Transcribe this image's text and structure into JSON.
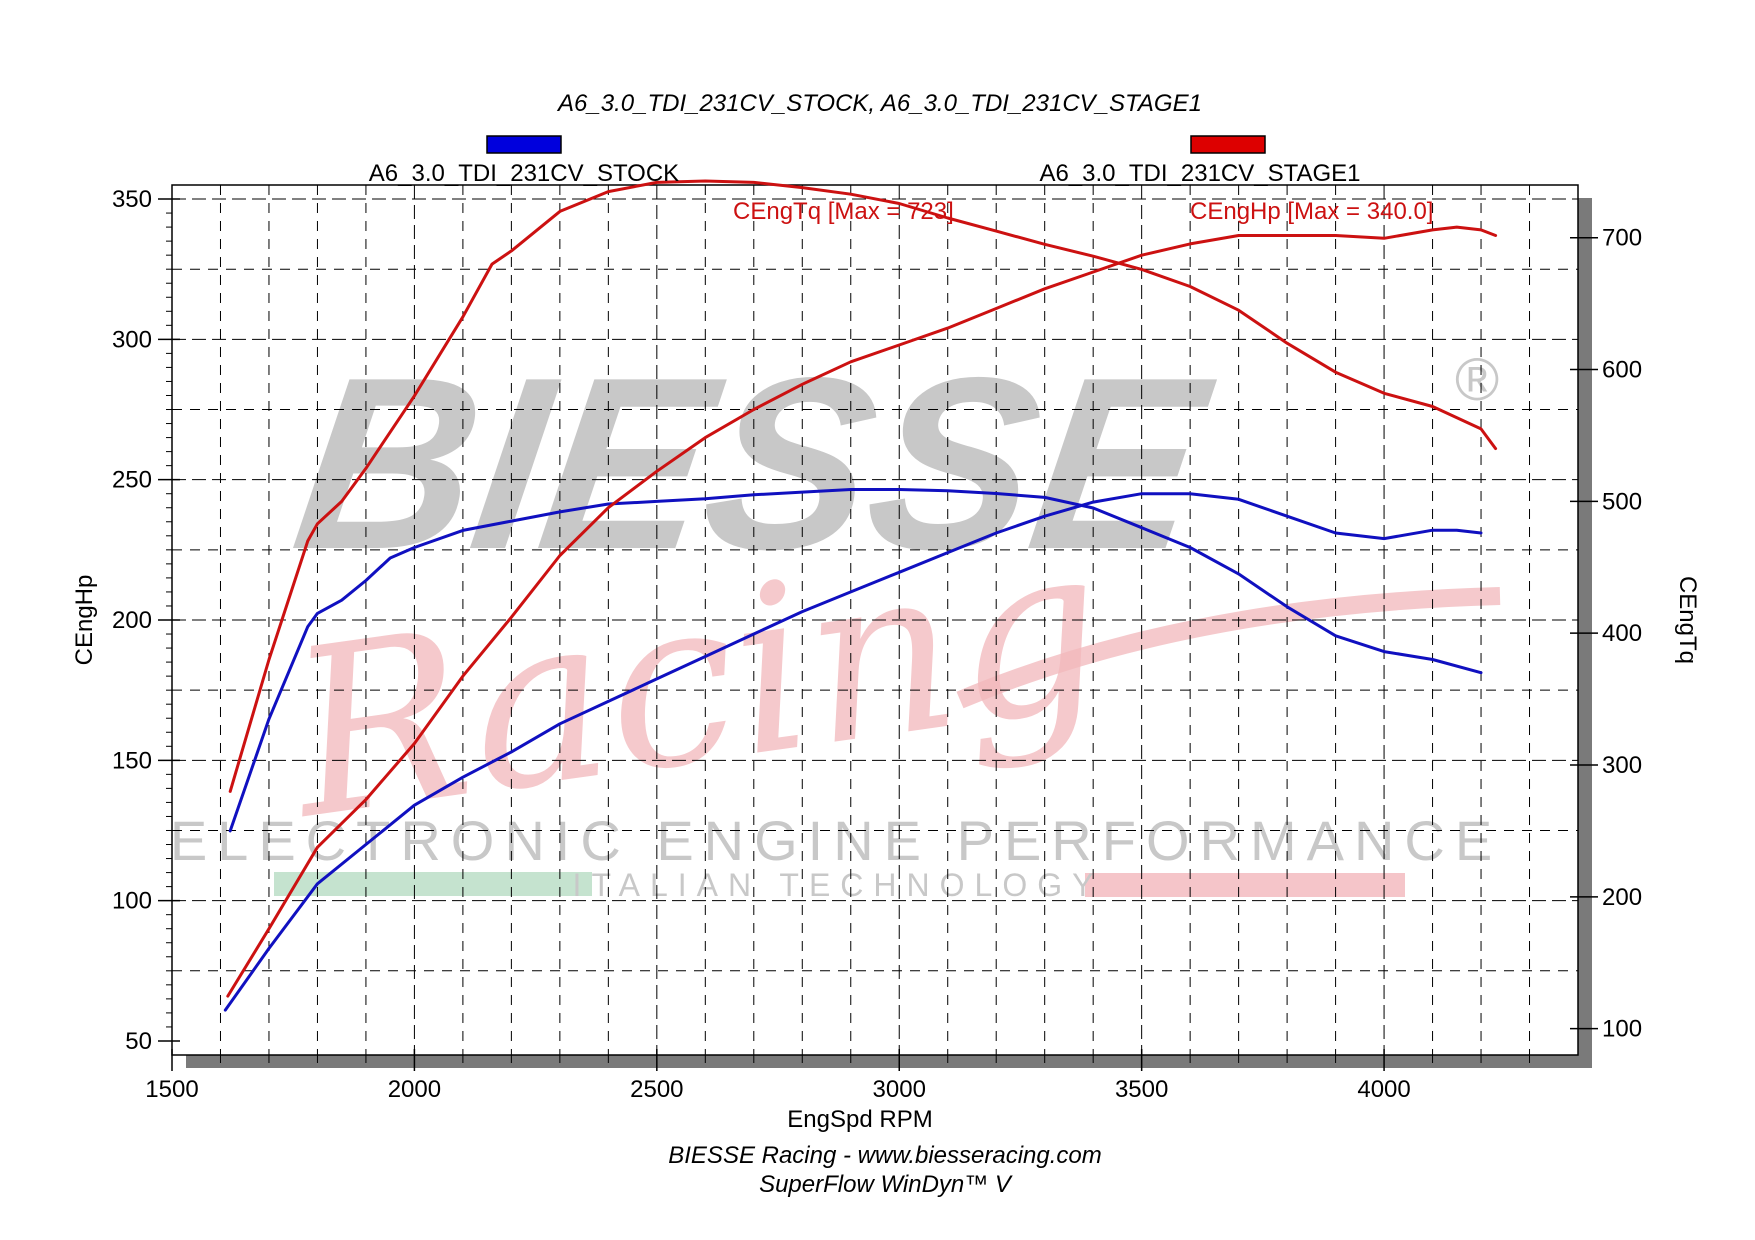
{
  "chart_data": {
    "type": "line",
    "title": "A6_3.0_TDI_231CV_STOCK, A6_3.0_TDI_231CV_STAGE1",
    "xlabel": "EngSpd RPM",
    "ylabel_left": "CEngHp",
    "ylabel_right": "CEngTq",
    "xlim": [
      1500,
      4400
    ],
    "ylim_left": [
      45,
      355
    ],
    "ylim_right": [
      80,
      740
    ],
    "x_ticks": [
      1500,
      2000,
      2500,
      3000,
      3500,
      4000
    ],
    "y_left_ticks": [
      50,
      100,
      150,
      200,
      250,
      300,
      350
    ],
    "y_right_ticks": [
      100,
      200,
      300,
      400,
      500,
      600,
      700
    ],
    "grid": true,
    "legend": [
      {
        "name": "A6_3.0_TDI_231CV_STOCK",
        "color": "#0000dd"
      },
      {
        "name": "A6_3.0_TDI_231CV_STAGE1",
        "color": "#dd0000"
      }
    ],
    "annotations": {
      "torque_max": "CEngTq [Max = 723]",
      "power_max": "CEngHp [Max = 340.0]"
    },
    "series": [
      {
        "run": "A6_3.0_TDI_231CV_STOCK",
        "quantity": "CEngTq",
        "axis": "right",
        "color": "#1010c0",
        "x": [
          1620,
          1700,
          1780,
          1800,
          1850,
          1900,
          1950,
          2000,
          2100,
          2200,
          2300,
          2400,
          2500,
          2600,
          2700,
          2800,
          2900,
          3000,
          3100,
          3200,
          3300,
          3400,
          3500,
          3600,
          3700,
          3800,
          3900,
          4000,
          4100,
          4200
        ],
        "values": [
          250,
          335,
          405,
          415,
          425,
          440,
          457,
          465,
          478,
          485,
          492,
          498,
          500,
          502,
          505,
          507,
          509,
          509,
          508,
          506,
          503,
          495,
          480,
          465,
          445,
          420,
          398,
          386,
          380,
          370
        ]
      },
      {
        "run": "A6_3.0_TDI_231CV_STOCK",
        "quantity": "CEngHp",
        "axis": "left",
        "color": "#1010c0",
        "x": [
          1610,
          1700,
          1800,
          1900,
          2000,
          2100,
          2200,
          2300,
          2400,
          2500,
          2600,
          2700,
          2800,
          2900,
          3000,
          3100,
          3200,
          3300,
          3400,
          3500,
          3600,
          3700,
          3800,
          3900,
          4000,
          4100,
          4150,
          4200
        ],
        "values": [
          61,
          83,
          106,
          120,
          134,
          144,
          153,
          163,
          171,
          179,
          187,
          195,
          203,
          210,
          217,
          224,
          231,
          237,
          242,
          245,
          245,
          243,
          237,
          231,
          229,
          232,
          232,
          231
        ]
      },
      {
        "run": "A6_3.0_TDI_231CV_STAGE1",
        "quantity": "CEngTq",
        "axis": "right",
        "color": "#cc1111",
        "x": [
          1620,
          1700,
          1780,
          1800,
          1850,
          1900,
          2000,
          2100,
          2160,
          2200,
          2300,
          2400,
          2500,
          2600,
          2700,
          2800,
          2900,
          3000,
          3100,
          3200,
          3300,
          3400,
          3500,
          3600,
          3700,
          3800,
          3900,
          4000,
          4100,
          4200,
          4230
        ],
        "values": [
          280,
          380,
          470,
          483,
          500,
          525,
          580,
          640,
          680,
          690,
          720,
          735,
          742,
          743,
          742,
          738,
          733,
          726,
          715,
          705,
          695,
          686,
          676,
          663,
          645,
          620,
          598,
          582,
          572,
          555,
          540
        ]
      },
      {
        "run": "A6_3.0_TDI_231CV_STAGE1",
        "quantity": "CEngHp",
        "axis": "left",
        "color": "#cc1111",
        "x": [
          1615,
          1700,
          1800,
          1900,
          2000,
          2100,
          2200,
          2300,
          2400,
          2500,
          2600,
          2700,
          2800,
          2900,
          3000,
          3100,
          3200,
          3300,
          3400,
          3500,
          3600,
          3700,
          3800,
          3900,
          4000,
          4100,
          4150,
          4200,
          4230
        ],
        "values": [
          66,
          90,
          119,
          136,
          156,
          180,
          201,
          223,
          240,
          253,
          265,
          275,
          284,
          292,
          298,
          304,
          311,
          318,
          324,
          330,
          334,
          337,
          337,
          337,
          336,
          339,
          340,
          339,
          337
        ]
      }
    ]
  },
  "watermark": {
    "brand": "BIESSE",
    "script": "Racing",
    "tagline": "ELECTRONIC ENGINE PERFORMANCE",
    "subline": "ITALIAN TECHNOLOGY",
    "registered": "®"
  },
  "footer": {
    "line1": "BIESSE Racing - www.biesseracing.com",
    "line2": "SuperFlow WinDyn™ V"
  }
}
